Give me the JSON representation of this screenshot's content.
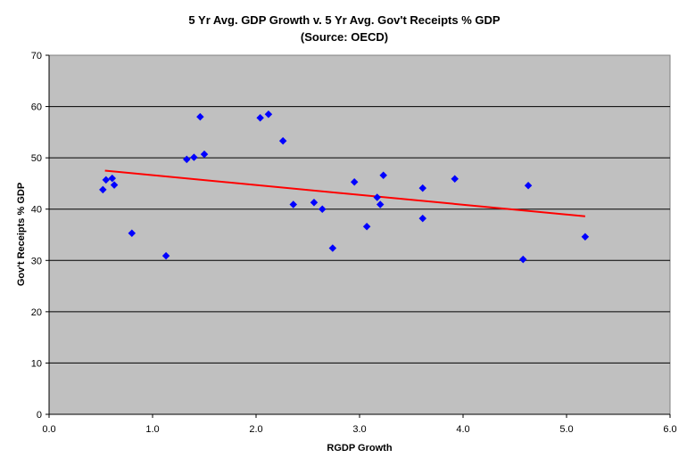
{
  "chart_data": {
    "type": "scatter",
    "title": "5 Yr Avg. GDP Growth v. 5 Yr Avg. Gov't Receipts % GDP",
    "subtitle": "(Source: OECD)",
    "xlabel": "RGDP Growth",
    "ylabel": "Gov't Receipts % GDP",
    "xlim": [
      0,
      6
    ],
    "ylim": [
      0,
      70
    ],
    "x_ticks": [
      "0.0",
      "1.0",
      "2.0",
      "3.0",
      "4.0",
      "5.0",
      "6.0"
    ],
    "y_ticks": [
      "0",
      "10",
      "20",
      "30",
      "40",
      "50",
      "60",
      "70"
    ],
    "grid": "horizontal",
    "legend": "none",
    "plot_background": "#c0c0c0",
    "point_color": "#0000ff",
    "trendline_color": "#ff0000",
    "series": [
      {
        "points": [
          [
            0.52,
            43.8
          ],
          [
            0.55,
            45.7
          ],
          [
            0.61,
            46.0
          ],
          [
            0.63,
            44.7
          ],
          [
            0.8,
            35.3
          ],
          [
            1.13,
            30.9
          ],
          [
            1.33,
            49.7
          ],
          [
            1.4,
            50.1
          ],
          [
            1.46,
            58.0
          ],
          [
            1.5,
            50.7
          ],
          [
            2.04,
            57.8
          ],
          [
            2.12,
            58.5
          ],
          [
            2.26,
            53.3
          ],
          [
            2.36,
            40.9
          ],
          [
            2.56,
            41.3
          ],
          [
            2.64,
            40.0
          ],
          [
            2.74,
            32.4
          ],
          [
            2.95,
            45.3
          ],
          [
            3.07,
            36.6
          ],
          [
            3.17,
            42.3
          ],
          [
            3.2,
            40.9
          ],
          [
            3.23,
            46.6
          ],
          [
            3.61,
            44.1
          ],
          [
            3.61,
            38.2
          ],
          [
            3.92,
            45.9
          ],
          [
            4.58,
            30.2
          ],
          [
            4.63,
            44.6
          ],
          [
            5.18,
            34.6
          ]
        ]
      }
    ],
    "trendline": {
      "x": [
        0.54,
        5.18
      ],
      "y": [
        47.5,
        38.6
      ]
    }
  }
}
